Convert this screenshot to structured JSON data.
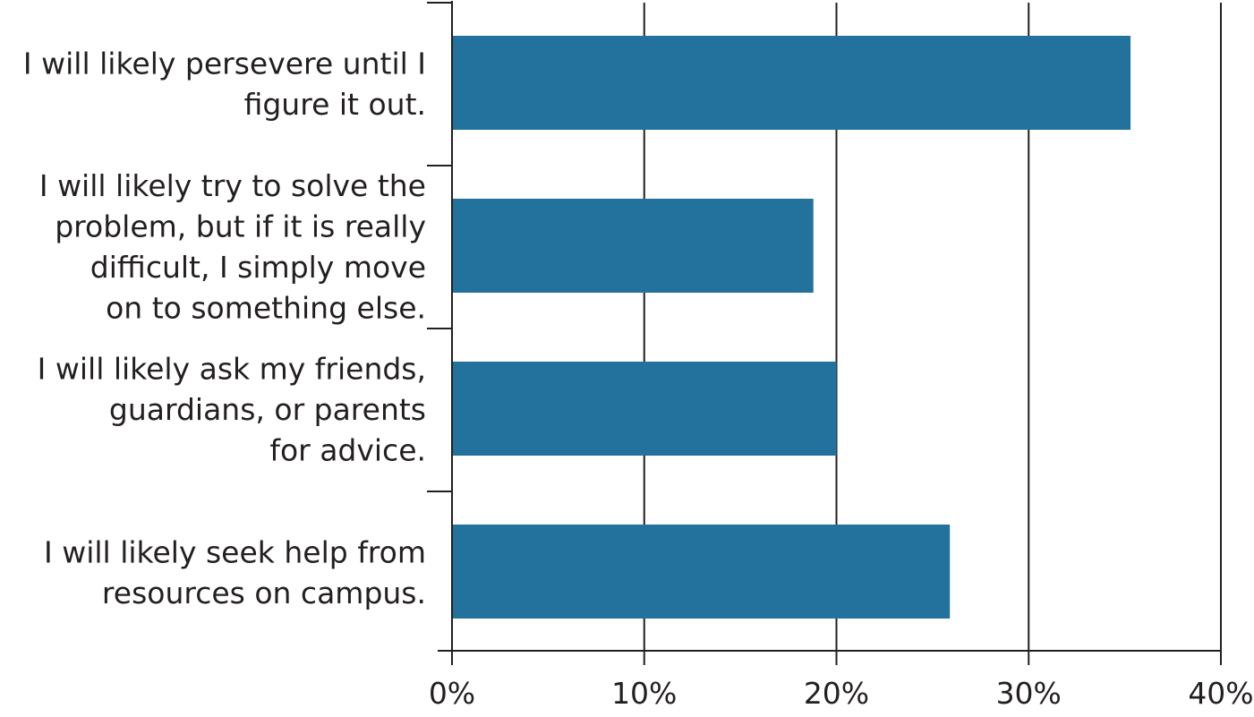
{
  "chart_data": {
    "type": "bar",
    "orientation": "horizontal",
    "categories": [
      "I will likely persevere until I figure it out.",
      "I will likely try to solve the problem, but if it is really difficult, I simply move on to something else.",
      "I will likely ask my friends, guardians, or parents for advice.",
      "I will likely seek help from resources on campus."
    ],
    "category_lines": [
      [
        "I will likely persevere until I",
        "figure it out."
      ],
      [
        "I will likely try to solve the",
        "problem, but if it is really",
        "difficult, I simply move",
        "on to something else."
      ],
      [
        "I will likely ask my friends,",
        "guardians, or parents",
        "for advice."
      ],
      [
        "I will likely seek help from",
        "resources on campus."
      ]
    ],
    "values": [
      35.3,
      18.8,
      20,
      25.9
    ],
    "xlim": [
      0,
      40
    ],
    "xticks": [
      0,
      10,
      20,
      30,
      40
    ],
    "xtick_labels": [
      "0%",
      "10%",
      "20%",
      "30%",
      "40%"
    ],
    "title": "",
    "xlabel": "",
    "ylabel": "",
    "grid": "vertical",
    "legend": "none",
    "colors": {
      "bar": "#23729e",
      "axis": "#231f20",
      "text": "#231f20"
    }
  }
}
